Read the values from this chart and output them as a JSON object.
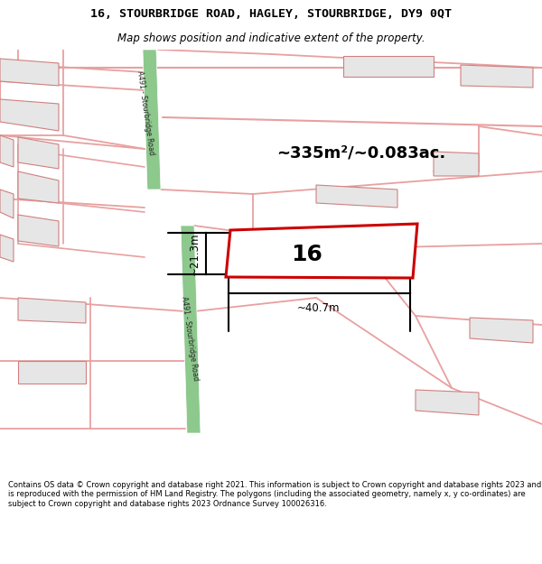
{
  "title_line1": "16, STOURBRIDGE ROAD, HAGLEY, STOURBRIDGE, DY9 0QT",
  "title_line2": "Map shows position and indicative extent of the property.",
  "footer_text": "Contains OS data © Crown copyright and database right 2021. This information is subject to Crown copyright and database rights 2023 and is reproduced with the permission of HM Land Registry. The polygons (including the associated geometry, namely x, y co-ordinates) are subject to Crown copyright and database rights 2023 Ordnance Survey 100026316.",
  "map_bg": "#ffffff",
  "road_color_pink": "#e8a0a0",
  "road_color_green": "#8dc88d",
  "property_color": "#cc0000",
  "property_label": "16",
  "area_label": "~335m²/~0.083ac.",
  "dim_width": "~40.7m",
  "dim_height": "~21.3m",
  "building_fill": "#e6e6e6",
  "building_stroke": "#d08080",
  "road_label": "A491 - Stourbridge Road"
}
